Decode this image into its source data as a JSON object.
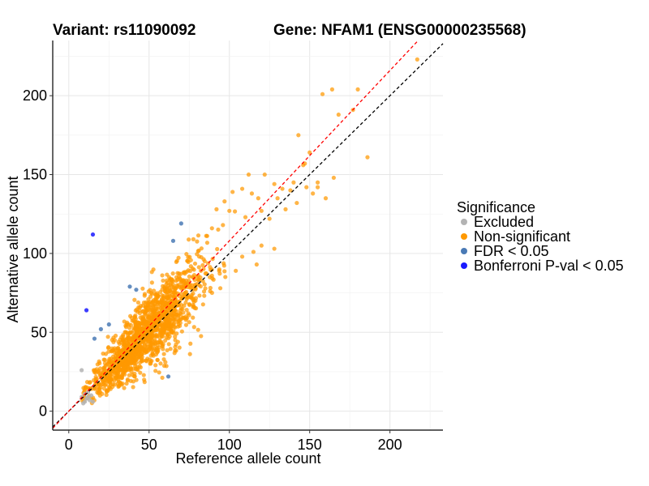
{
  "chart_data": {
    "type": "scatter",
    "title_left": "Variant: rs11090092",
    "title_right": "Gene: NFAM1 (ENSG00000235568)",
    "xlabel": "Reference allele count",
    "ylabel": "Alternative allele count",
    "xlim": [
      -10,
      233
    ],
    "ylim": [
      -12,
      235
    ],
    "xticks": [
      0,
      50,
      100,
      150,
      200
    ],
    "yticks": [
      0,
      50,
      100,
      150,
      200
    ],
    "grid": true,
    "legend": {
      "title": "Significance",
      "position": "right",
      "entries": [
        {
          "label": "Excluded",
          "color": "#b3b3b3"
        },
        {
          "label": "Non-significant",
          "color": "#ff9900"
        },
        {
          "label": "FDR < 0.05",
          "color": "#4a7ab5"
        },
        {
          "label": "Bonferroni P-val < 0.05",
          "color": "#1a1aff"
        }
      ]
    },
    "reference_lines": [
      {
        "name": "identity",
        "slope": 1,
        "intercept": 0,
        "color": "#000000",
        "dash": "dashed"
      },
      {
        "name": "fitted",
        "slope": 1.08,
        "intercept": 0,
        "color": "#ff0000",
        "dash": "dashed"
      }
    ],
    "series": [
      {
        "name": "Excluded",
        "color": "#b3b3b3",
        "points": [
          [
            8,
            26
          ],
          [
            8,
            9
          ],
          [
            9,
            5
          ],
          [
            10,
            11
          ],
          [
            11,
            8
          ],
          [
            12,
            12
          ],
          [
            13,
            7
          ],
          [
            14,
            10
          ],
          [
            15,
            6
          ],
          [
            10,
            6
          ],
          [
            12,
            9
          ]
        ]
      },
      {
        "name": "FDR < 0.05",
        "color": "#4a7ab5",
        "points": [
          [
            70,
            119
          ],
          [
            65,
            108
          ],
          [
            38,
            79
          ],
          [
            42,
            77
          ],
          [
            25,
            55
          ],
          [
            20,
            52
          ],
          [
            16,
            46
          ],
          [
            62,
            22
          ]
        ]
      },
      {
        "name": "Bonferroni P-val < 0.05",
        "color": "#1a1aff",
        "points": [
          [
            15,
            112
          ],
          [
            11,
            64
          ]
        ]
      },
      {
        "name": "Non-significant",
        "color": "#ff9900",
        "generated": {
          "count": 1500,
          "x_range": [
            8,
            110
          ],
          "slope": 1.02,
          "noise": 9
        },
        "points": [
          [
            217,
            223
          ],
          [
            164,
            204
          ],
          [
            180,
            204
          ],
          [
            168,
            188
          ],
          [
            177,
            191
          ],
          [
            186,
            161
          ],
          [
            158,
            201
          ],
          [
            143,
            175
          ],
          [
            150,
            164
          ],
          [
            147,
            157
          ],
          [
            165,
            148
          ],
          [
            140,
            145
          ],
          [
            138,
            140
          ],
          [
            146,
            156
          ],
          [
            155,
            145
          ],
          [
            152,
            138
          ],
          [
            155,
            142
          ],
          [
            160,
            135
          ],
          [
            142,
            132
          ],
          [
            133,
            141
          ],
          [
            130,
            135
          ],
          [
            128,
            144
          ],
          [
            120,
            127
          ],
          [
            125,
            122
          ],
          [
            118,
            135
          ],
          [
            112,
            150
          ],
          [
            108,
            141
          ],
          [
            102,
            139
          ],
          [
            96,
            118
          ],
          [
            92,
            128
          ],
          [
            115,
            101
          ],
          [
            120,
            105
          ],
          [
            108,
            98
          ],
          [
            128,
            103
          ],
          [
            104,
            89
          ],
          [
            117,
            93
          ],
          [
            122,
            150
          ],
          [
            135,
            128
          ],
          [
            148,
            142
          ],
          [
            100,
            127
          ],
          [
            97,
            133
          ],
          [
            110,
            123
          ],
          [
            114,
            138
          ]
        ]
      }
    ]
  }
}
